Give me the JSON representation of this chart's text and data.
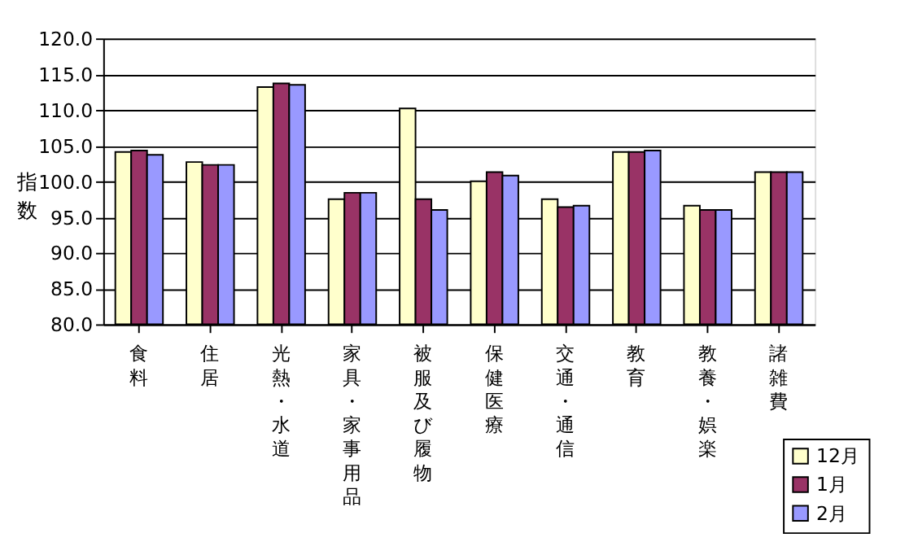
{
  "chart_data": {
    "type": "bar",
    "ylabel": "指数",
    "categories": [
      "食料",
      "住居",
      "光熱・水道",
      "家具・家事用品",
      "被服及び履物",
      "保健医療",
      "交通・通信",
      "教育",
      "教養・娯楽",
      "諸雑費"
    ],
    "series": [
      {
        "name": "12月",
        "color": "#ffffcc",
        "values": [
          104.1,
          102.7,
          113.2,
          97.5,
          110.2,
          100.0,
          97.5,
          104.1,
          96.6,
          101.3
        ]
      },
      {
        "name": "1月",
        "color": "#993366",
        "values": [
          104.3,
          102.3,
          113.7,
          98.4,
          97.5,
          101.3,
          96.4,
          104.1,
          96.0,
          101.3
        ]
      },
      {
        "name": "2月",
        "color": "#9999ff",
        "values": [
          103.7,
          102.3,
          113.5,
          98.4,
          96.0,
          100.8,
          96.6,
          104.3,
          96.0,
          101.3
        ]
      }
    ],
    "ylim": [
      80,
      120
    ],
    "yticks": [
      {
        "value": 80,
        "label": "80.0"
      },
      {
        "value": 85,
        "label": "85.0"
      },
      {
        "value": 90,
        "label": "90.0"
      },
      {
        "value": 95,
        "label": "95.0"
      },
      {
        "value": 100,
        "label": "100.0"
      },
      {
        "value": 105,
        "label": "105.0"
      },
      {
        "value": 110,
        "label": "110.0"
      },
      {
        "value": 115,
        "label": "115.0"
      },
      {
        "value": 120,
        "label": "120.0"
      }
    ],
    "grid": "y",
    "legend": "bottom right"
  }
}
